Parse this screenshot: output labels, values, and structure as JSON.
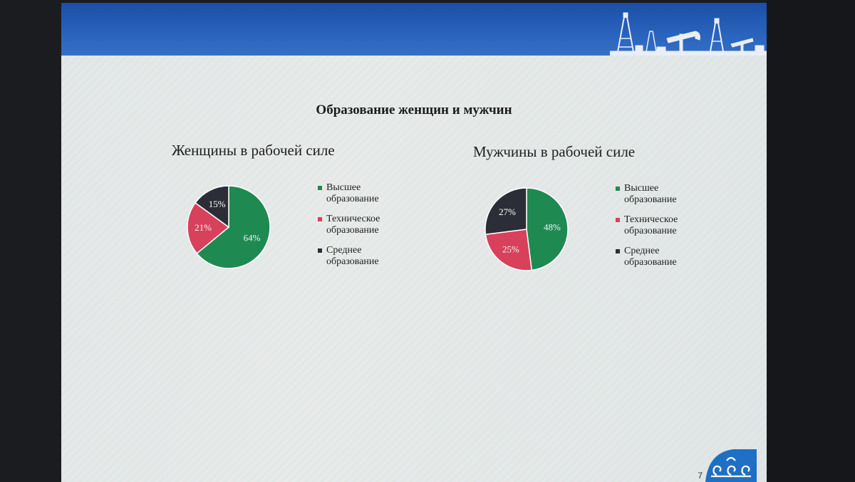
{
  "slide": {
    "title": "Образование женщин и мужчин",
    "page_number": "7"
  },
  "colors": {
    "header": "#1f56ae",
    "higher": "#1e8a52",
    "technical": "#d8415c",
    "secondary": "#2b2e36"
  },
  "chart_data": [
    {
      "type": "pie",
      "title": "Женщины в рабочей силе",
      "categories": [
        "Высшее образование",
        "Техническое образование",
        "Среднее образование"
      ],
      "values": [
        64,
        21,
        15
      ],
      "labels": [
        "64%",
        "21%",
        "15%"
      ],
      "legend": "right"
    },
    {
      "type": "pie",
      "title": "Мужчины в рабочей силе",
      "categories": [
        "Высшее образование",
        "Техническое образование",
        "Среднее образование"
      ],
      "values": [
        48,
        25,
        27
      ],
      "labels": [
        "48%",
        "25%",
        "27%"
      ],
      "legend": "right"
    }
  ]
}
